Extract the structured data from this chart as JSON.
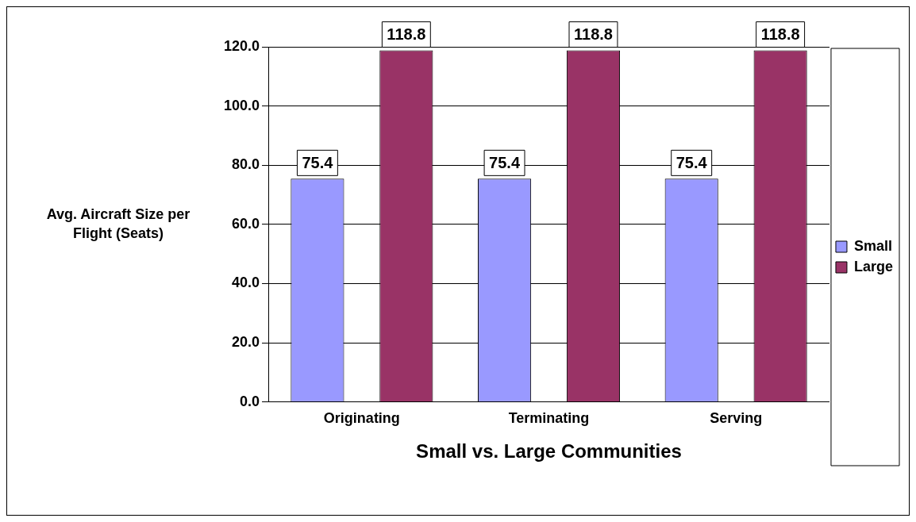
{
  "chart_data": {
    "type": "bar",
    "xlabel": "Small vs. Large Communities",
    "ylabel": "Avg. Aircraft Size per Flight (Seats)",
    "categories": [
      "Originating",
      "Terminating",
      "Serving"
    ],
    "series": [
      {
        "name": "Small",
        "color": "#9999ff",
        "values": [
          75.4,
          75.4,
          75.4
        ]
      },
      {
        "name": "Large",
        "color": "#993366",
        "values": [
          118.8,
          118.8,
          118.8
        ]
      }
    ],
    "ylim": [
      0,
      120
    ],
    "yticks": [
      {
        "value": 0,
        "label": "0.0"
      },
      {
        "value": 20,
        "label": "20.0"
      },
      {
        "value": 40,
        "label": "40.0"
      },
      {
        "value": 60,
        "label": "60.0"
      },
      {
        "value": 80,
        "label": "80.0"
      },
      {
        "value": 100,
        "label": "100.0"
      },
      {
        "value": 120,
        "label": "120.0"
      }
    ],
    "grid": "y",
    "legend": "right",
    "data_labels": true
  }
}
